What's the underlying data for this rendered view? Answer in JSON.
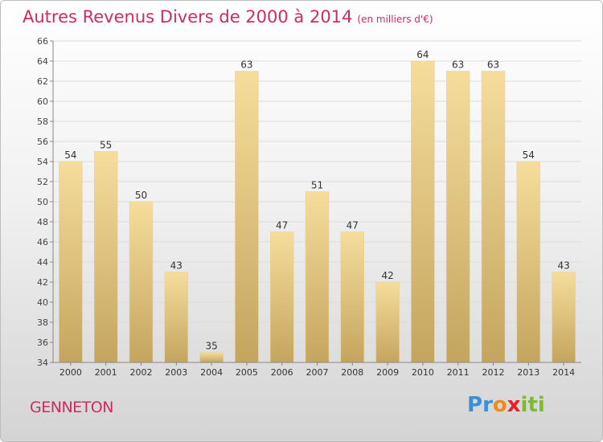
{
  "header": {
    "title": "Autres Revenus Divers de 2000 à 2014",
    "subtitle": "(en milliers d'€)"
  },
  "footer": {
    "place": "GENNETON",
    "logo_letters": [
      "P",
      "r",
      "o",
      "x",
      "i",
      "t",
      "i"
    ],
    "logo_colors": [
      "#3a8fd6",
      "#3a8fd6",
      "#f08a1c",
      "#e2232a",
      "#7bbd2a",
      "#7bbd2a",
      "#7bbd2a"
    ]
  },
  "chart_data": {
    "type": "bar",
    "categories": [
      "2000",
      "2001",
      "2002",
      "2003",
      "2004",
      "2005",
      "2006",
      "2007",
      "2008",
      "2009",
      "2010",
      "2011",
      "2012",
      "2013",
      "2014"
    ],
    "values": [
      54,
      55,
      50,
      43,
      35,
      63,
      47,
      51,
      47,
      42,
      64,
      63,
      63,
      54,
      43
    ],
    "title": "Autres Revenus Divers de 2000 à 2014",
    "subtitle": "(en milliers d'€)",
    "xlabel": "",
    "ylabel": "",
    "ylim": [
      34,
      66
    ],
    "yticks": [
      34,
      36,
      38,
      40,
      42,
      44,
      46,
      48,
      50,
      52,
      54,
      56,
      58,
      60,
      62,
      64,
      66
    ],
    "grid": true,
    "bar_color_top": "#f6dd9c",
    "bar_color_bottom": "#c4a55e"
  }
}
